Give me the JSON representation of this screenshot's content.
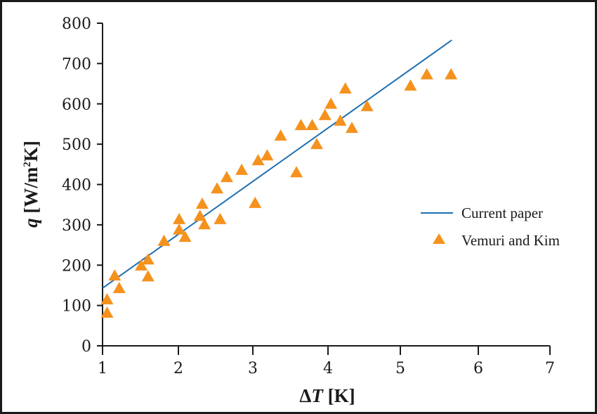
{
  "chart_data": {
    "type": "scatter",
    "title": "",
    "xlabel": "ΔT [K]",
    "ylabel": "q [W/m²K]",
    "xlim": [
      1,
      7
    ],
    "ylim": [
      0,
      800
    ],
    "x_ticks": [
      "1",
      "2",
      "3",
      "4",
      "5",
      "6",
      "7"
    ],
    "y_ticks": [
      "0",
      "100",
      "200",
      "300",
      "400",
      "500",
      "600",
      "700",
      "800"
    ],
    "grid": false,
    "legend_position": "right-center",
    "series": [
      {
        "name": "Current paper",
        "type": "line",
        "color": "#1f6fb0",
        "x": [
          1.0,
          5.66
        ],
        "y": [
          143,
          758
        ]
      },
      {
        "name": "Vemuri and Kim",
        "type": "scatter",
        "marker": "triangle",
        "color": "#f5921e",
        "x": [
          1.06,
          1.06,
          1.16,
          1.22,
          1.51,
          1.6,
          1.6,
          1.81,
          2.01,
          2.01,
          2.09,
          2.29,
          2.32,
          2.35,
          2.52,
          2.56,
          2.65,
          2.85,
          3.03,
          3.07,
          3.19,
          3.37,
          3.58,
          3.64,
          3.79,
          3.85,
          3.96,
          4.04,
          4.17,
          4.24,
          4.33,
          4.54,
          5.13,
          5.34,
          5.65
        ],
        "y": [
          82,
          115,
          174,
          143,
          199,
          214,
          172,
          260,
          314,
          288,
          270,
          322,
          352,
          301,
          390,
          314,
          418,
          436,
          354,
          460,
          472,
          521,
          430,
          547,
          547,
          500,
          572,
          600,
          558,
          638,
          540,
          594,
          645,
          673,
          673
        ]
      }
    ]
  },
  "axes": {
    "x_title_delta": "Δ",
    "x_title_var": "T",
    "x_title_unit": " [K]",
    "y_title_var": "q",
    "y_title_unit": " [W/m",
    "y_title_sup": "2",
    "y_title_end": "K]"
  },
  "legend": {
    "line_label": "Current paper",
    "marker_label": "Vemuri and Kim"
  }
}
